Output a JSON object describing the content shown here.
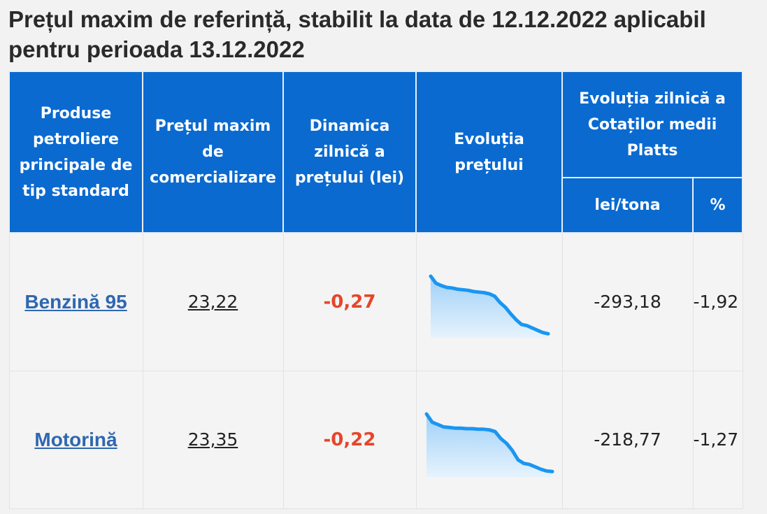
{
  "title": "Prețul maxim de referință, stabilit la data de 12.12.2022 aplicabil pentru perioada 13.12.2022",
  "table": {
    "headers": {
      "product": "Produse petroliere principale de tip standard",
      "max_price": "Prețul maxim de comercializare",
      "dynamics": "Dinamica zilnică a prețului (lei)",
      "evolution": "Evoluția prețului",
      "platts": "Evoluția zilnică a Cotaților medii Platts",
      "lei_tona": "lei/tona",
      "percent": "%"
    },
    "rows": [
      {
        "product": "Benzină 95",
        "max_price": "23,22",
        "dynamics": "-0,27",
        "platts_lei": "-293,18",
        "platts_pct": "-1,92",
        "sparkline": [
          1.0,
          0.88,
          0.84,
          0.81,
          0.8,
          0.78,
          0.77,
          0.76,
          0.74,
          0.73,
          0.72,
          0.7,
          0.66,
          0.55,
          0.47,
          0.36,
          0.26,
          0.18,
          0.16,
          0.12,
          0.08,
          0.04,
          0.02
        ]
      },
      {
        "product": "Motorină",
        "max_price": "23,35",
        "dynamics": "-0,22",
        "platts_lei": "-218,77",
        "platts_pct": "-1,27",
        "sparkline": [
          1.0,
          0.86,
          0.82,
          0.78,
          0.77,
          0.76,
          0.76,
          0.75,
          0.75,
          0.74,
          0.74,
          0.73,
          0.7,
          0.58,
          0.5,
          0.38,
          0.22,
          0.16,
          0.14,
          0.1,
          0.06,
          0.03,
          0.02
        ]
      }
    ]
  },
  "colors": {
    "header_bg": "#0a6ad0",
    "link": "#2f67b0",
    "negative": "#e6452a",
    "spark_line": "#1a96f0",
    "spark_fill": "#bfe0fb"
  }
}
